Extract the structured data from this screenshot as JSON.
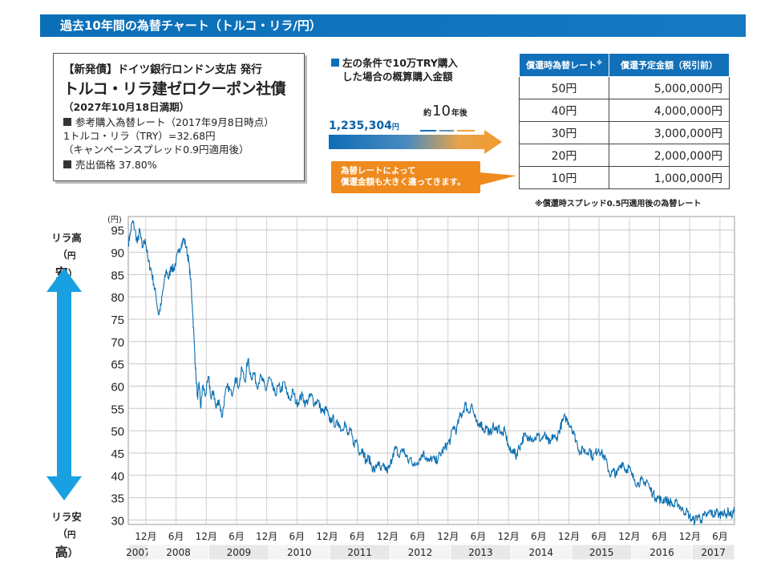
{
  "header": {
    "title": "過去10年間の為替チャート（トルコ・リラ/円）"
  },
  "bond": {
    "line1": "【新発債】ドイツ銀行ロンドン支店 発行",
    "line2": "トルコ・リラ建ゼロクーポン社債",
    "line3": "（2027年10月18日満期）",
    "ref_label": "参考購入為替レート（2017年9月8日時点）",
    "ref_rate": "1トルコ・リラ（TRY）=32.68円",
    "ref_note": "（キャンペーンスプレッド0.9円適用後）",
    "price": "売出価格 37.80%"
  },
  "purchase": {
    "title_line1": "左の条件で10万TRY購入",
    "title_line2": "した場合の概算購入金額",
    "amount": "1,235,304",
    "amount_unit": "円",
    "after_pre": "約",
    "after_num": "10",
    "after_post": "年後",
    "callout_line1": "為替レートによって",
    "callout_line2": "償還金額も大きく違ってきます。"
  },
  "redemption_table": {
    "headers": [
      "償還時為替レート",
      "償還予定金額（税引前）"
    ],
    "header_mark": "※",
    "rows": [
      {
        "rate": "50円",
        "amount": "5,000,000円"
      },
      {
        "rate": "40円",
        "amount": "4,000,000円"
      },
      {
        "rate": "30円",
        "amount": "3,000,000円"
      },
      {
        "rate": "20円",
        "amount": "2,000,000円"
      },
      {
        "rate": "10円",
        "amount": "1,000,000円"
      }
    ],
    "footnote": "※償還時スプレッド0.5円適用後の為替レート"
  },
  "side_labels": {
    "top_line1": "リラ高",
    "top_paren_open": "（",
    "top_small": "円",
    "top_big": "安",
    "top_paren_close": "）",
    "bottom_line1": "リラ安",
    "bottom_paren_open": "（",
    "bottom_small": "円",
    "bottom_big": "高",
    "bottom_paren_close": "）"
  },
  "colors": {
    "accent": "#1170b8",
    "orange": "#ef8a1e",
    "line": "#0a6eb0",
    "arrow_blue": "#18a0e0"
  },
  "chart_data": {
    "type": "line",
    "unit_label": "(円)",
    "ylim": [
      29,
      98
    ],
    "yticks": [
      30,
      35,
      40,
      45,
      50,
      55,
      60,
      65,
      70,
      75,
      80,
      85,
      90,
      95
    ],
    "x_range": [
      2007.67,
      2017.7
    ],
    "month_ticks": [
      {
        "x": 2007.96,
        "label": "12月"
      },
      {
        "x": 2008.46,
        "label": "6月"
      },
      {
        "x": 2008.96,
        "label": "12月"
      },
      {
        "x": 2009.46,
        "label": "6月"
      },
      {
        "x": 2009.96,
        "label": "12月"
      },
      {
        "x": 2010.46,
        "label": "6月"
      },
      {
        "x": 2010.96,
        "label": "12月"
      },
      {
        "x": 2011.46,
        "label": "6月"
      },
      {
        "x": 2011.96,
        "label": "12月"
      },
      {
        "x": 2012.46,
        "label": "6月"
      },
      {
        "x": 2012.96,
        "label": "12月"
      },
      {
        "x": 2013.46,
        "label": "6月"
      },
      {
        "x": 2013.96,
        "label": "12月"
      },
      {
        "x": 2014.46,
        "label": "6月"
      },
      {
        "x": 2014.96,
        "label": "12月"
      },
      {
        "x": 2015.46,
        "label": "6月"
      },
      {
        "x": 2015.96,
        "label": "12月"
      },
      {
        "x": 2016.46,
        "label": "6月"
      },
      {
        "x": 2016.96,
        "label": "12月"
      },
      {
        "x": 2017.46,
        "label": "6月"
      }
    ],
    "years": [
      {
        "label": "2007",
        "from": 2007.67,
        "to": 2008.0
      },
      {
        "label": "2008",
        "from": 2008.0,
        "to": 2009.0
      },
      {
        "label": "2009",
        "from": 2009.0,
        "to": 2010.0
      },
      {
        "label": "2010",
        "from": 2010.0,
        "to": 2011.0
      },
      {
        "label": "2011",
        "from": 2011.0,
        "to": 2012.0
      },
      {
        "label": "2012",
        "from": 2012.0,
        "to": 2013.0
      },
      {
        "label": "2013",
        "from": 2013.0,
        "to": 2014.0
      },
      {
        "label": "2014",
        "from": 2014.0,
        "to": 2015.0
      },
      {
        "label": "2015",
        "from": 2015.0,
        "to": 2016.0
      },
      {
        "label": "2016",
        "from": 2016.0,
        "to": 2017.0
      },
      {
        "label": "2017",
        "from": 2017.0,
        "to": 2017.7
      }
    ],
    "grid": true,
    "series": [
      {
        "points": [
          [
            2007.67,
            92
          ],
          [
            2007.7,
            94
          ],
          [
            2007.74,
            97
          ],
          [
            2007.78,
            95
          ],
          [
            2007.82,
            92
          ],
          [
            2007.86,
            95
          ],
          [
            2007.9,
            91
          ],
          [
            2007.95,
            93
          ],
          [
            2008.0,
            88
          ],
          [
            2008.05,
            86
          ],
          [
            2008.09,
            83
          ],
          [
            2008.13,
            80
          ],
          [
            2008.17,
            76
          ],
          [
            2008.21,
            78
          ],
          [
            2008.25,
            82
          ],
          [
            2008.3,
            86
          ],
          [
            2008.34,
            84
          ],
          [
            2008.38,
            87
          ],
          [
            2008.42,
            86
          ],
          [
            2008.46,
            88
          ],
          [
            2008.5,
            90
          ],
          [
            2008.55,
            92
          ],
          [
            2008.59,
            93
          ],
          [
            2008.63,
            91
          ],
          [
            2008.67,
            88
          ],
          [
            2008.7,
            84
          ],
          [
            2008.73,
            78
          ],
          [
            2008.76,
            70
          ],
          [
            2008.79,
            62
          ],
          [
            2008.82,
            57
          ],
          [
            2008.84,
            61
          ],
          [
            2008.87,
            55
          ],
          [
            2008.9,
            60
          ],
          [
            2008.95,
            58
          ],
          [
            2009.0,
            62
          ],
          [
            2009.04,
            57
          ],
          [
            2009.08,
            59
          ],
          [
            2009.12,
            55
          ],
          [
            2009.17,
            57
          ],
          [
            2009.22,
            53
          ],
          [
            2009.27,
            58
          ],
          [
            2009.32,
            60
          ],
          [
            2009.38,
            58
          ],
          [
            2009.44,
            62
          ],
          [
            2009.5,
            60
          ],
          [
            2009.55,
            64
          ],
          [
            2009.6,
            61
          ],
          [
            2009.65,
            66
          ],
          [
            2009.7,
            62
          ],
          [
            2009.75,
            63
          ],
          [
            2009.8,
            60
          ],
          [
            2009.85,
            62
          ],
          [
            2009.9,
            61
          ],
          [
            2009.95,
            59
          ],
          [
            2010.0,
            62
          ],
          [
            2010.05,
            60
          ],
          [
            2010.1,
            58
          ],
          [
            2010.15,
            60
          ],
          [
            2010.2,
            59
          ],
          [
            2010.25,
            61
          ],
          [
            2010.3,
            58
          ],
          [
            2010.35,
            57
          ],
          [
            2010.4,
            59
          ],
          [
            2010.45,
            56
          ],
          [
            2010.5,
            57
          ],
          [
            2010.55,
            58
          ],
          [
            2010.6,
            56
          ],
          [
            2010.65,
            57
          ],
          [
            2010.7,
            58
          ],
          [
            2010.75,
            56
          ],
          [
            2010.8,
            57
          ],
          [
            2010.85,
            55
          ],
          [
            2010.9,
            54
          ],
          [
            2010.95,
            55
          ],
          [
            2011.0,
            52
          ],
          [
            2011.05,
            53
          ],
          [
            2011.1,
            51
          ],
          [
            2011.15,
            52
          ],
          [
            2011.2,
            50
          ],
          [
            2011.25,
            52
          ],
          [
            2011.3,
            49
          ],
          [
            2011.35,
            50
          ],
          [
            2011.4,
            47
          ],
          [
            2011.45,
            48
          ],
          [
            2011.5,
            45
          ],
          [
            2011.55,
            46
          ],
          [
            2011.6,
            43
          ],
          [
            2011.65,
            44
          ],
          [
            2011.7,
            42
          ],
          [
            2011.75,
            41
          ],
          [
            2011.8,
            43
          ],
          [
            2011.85,
            41
          ],
          [
            2011.9,
            42
          ],
          [
            2011.95,
            41
          ],
          [
            2012.0,
            42
          ],
          [
            2012.05,
            45
          ],
          [
            2012.1,
            46
          ],
          [
            2012.15,
            44
          ],
          [
            2012.2,
            46
          ],
          [
            2012.25,
            45
          ],
          [
            2012.3,
            43
          ],
          [
            2012.35,
            44
          ],
          [
            2012.4,
            42
          ],
          [
            2012.45,
            43
          ],
          [
            2012.5,
            44
          ],
          [
            2012.55,
            45
          ],
          [
            2012.6,
            44
          ],
          [
            2012.65,
            43
          ],
          [
            2012.7,
            44
          ],
          [
            2012.75,
            43
          ],
          [
            2012.8,
            44
          ],
          [
            2012.85,
            45
          ],
          [
            2012.9,
            46
          ],
          [
            2012.95,
            47
          ],
          [
            2013.0,
            48
          ],
          [
            2013.05,
            51
          ],
          [
            2013.1,
            50
          ],
          [
            2013.15,
            53
          ],
          [
            2013.2,
            54
          ],
          [
            2013.25,
            56
          ],
          [
            2013.3,
            54
          ],
          [
            2013.35,
            56
          ],
          [
            2013.4,
            53
          ],
          [
            2013.45,
            51
          ],
          [
            2013.5,
            52
          ],
          [
            2013.55,
            50
          ],
          [
            2013.6,
            51
          ],
          [
            2013.65,
            49
          ],
          [
            2013.7,
            51
          ],
          [
            2013.75,
            50
          ],
          [
            2013.8,
            51
          ],
          [
            2013.85,
            49
          ],
          [
            2013.9,
            50
          ],
          [
            2013.95,
            47
          ],
          [
            2014.0,
            45
          ],
          [
            2014.05,
            46
          ],
          [
            2014.08,
            44
          ],
          [
            2014.12,
            46
          ],
          [
            2014.17,
            47
          ],
          [
            2014.22,
            49
          ],
          [
            2014.27,
            48
          ],
          [
            2014.32,
            49
          ],
          [
            2014.38,
            48
          ],
          [
            2014.44,
            49
          ],
          [
            2014.5,
            48
          ],
          [
            2014.55,
            49
          ],
          [
            2014.6,
            48
          ],
          [
            2014.65,
            47
          ],
          [
            2014.7,
            49
          ],
          [
            2014.75,
            48
          ],
          [
            2014.8,
            50
          ],
          [
            2014.85,
            52
          ],
          [
            2014.9,
            53
          ],
          [
            2014.95,
            52
          ],
          [
            2015.0,
            51
          ],
          [
            2015.05,
            49
          ],
          [
            2015.1,
            47
          ],
          [
            2015.15,
            45
          ],
          [
            2015.2,
            46
          ],
          [
            2015.25,
            45
          ],
          [
            2015.3,
            46
          ],
          [
            2015.35,
            44
          ],
          [
            2015.4,
            45
          ],
          [
            2015.45,
            46
          ],
          [
            2015.5,
            45
          ],
          [
            2015.55,
            44
          ],
          [
            2015.6,
            42
          ],
          [
            2015.65,
            40
          ],
          [
            2015.7,
            41
          ],
          [
            2015.75,
            40
          ],
          [
            2015.8,
            42
          ],
          [
            2015.85,
            43
          ],
          [
            2015.9,
            41
          ],
          [
            2015.95,
            42
          ],
          [
            2016.0,
            40
          ],
          [
            2016.05,
            39
          ],
          [
            2016.1,
            38
          ],
          [
            2016.15,
            39
          ],
          [
            2016.2,
            38
          ],
          [
            2016.25,
            39
          ],
          [
            2016.3,
            37
          ],
          [
            2016.35,
            36
          ],
          [
            2016.4,
            35
          ],
          [
            2016.45,
            35
          ],
          [
            2016.5,
            34
          ],
          [
            2016.55,
            35
          ],
          [
            2016.6,
            34
          ],
          [
            2016.65,
            34
          ],
          [
            2016.7,
            33
          ],
          [
            2016.75,
            34
          ],
          [
            2016.8,
            33
          ],
          [
            2016.85,
            32
          ],
          [
            2016.9,
            32
          ],
          [
            2016.95,
            31
          ],
          [
            2017.0,
            30
          ],
          [
            2017.05,
            30
          ],
          [
            2017.1,
            31
          ],
          [
            2017.15,
            30
          ],
          [
            2017.2,
            31
          ],
          [
            2017.25,
            31
          ],
          [
            2017.3,
            32
          ],
          [
            2017.35,
            31
          ],
          [
            2017.4,
            32
          ],
          [
            2017.45,
            31
          ],
          [
            2017.5,
            32
          ],
          [
            2017.55,
            31
          ],
          [
            2017.6,
            32
          ],
          [
            2017.65,
            31
          ],
          [
            2017.7,
            32
          ]
        ]
      }
    ]
  }
}
